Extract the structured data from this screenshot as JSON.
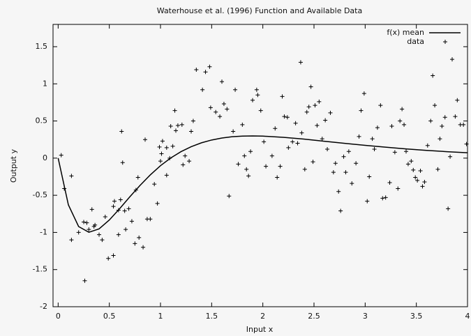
{
  "chart_data": {
    "type": "line",
    "title": "Waterhouse et al. (1996) Function and Available Data",
    "x_label": "Input x",
    "y_label": "Output y",
    "xlim": [
      -0.05,
      4
    ],
    "ylim": [
      -2,
      1.8
    ],
    "xticks": [
      0,
      0.5,
      1,
      1.5,
      2,
      2.5,
      3,
      3.5,
      4
    ],
    "yticks": [
      -2,
      -1.5,
      -1,
      -0.5,
      0,
      0.5,
      1,
      1.5
    ],
    "grid": false,
    "legend": "top-right",
    "series": [
      {
        "name": "f(x) mean",
        "type": "line",
        "color": "#000000",
        "x": [
          0,
          0.1,
          0.2,
          0.3,
          0.4,
          0.5,
          0.6,
          0.7,
          0.8,
          0.9,
          1.0,
          1.1,
          1.2,
          1.3,
          1.4,
          1.5,
          1.6,
          1.7,
          1.8,
          1.9,
          2.0,
          2.2,
          2.4,
          2.6,
          2.8,
          3.0,
          3.2,
          3.4,
          3.6,
          3.8,
          4.0
        ],
        "values": [
          0,
          -0.629,
          -0.921,
          -0.998,
          -0.952,
          -0.833,
          -0.682,
          -0.521,
          -0.367,
          -0.226,
          -0.102,
          0.002,
          0.087,
          0.154,
          0.206,
          0.244,
          0.271,
          0.288,
          0.296,
          0.299,
          0.296,
          0.28,
          0.256,
          0.227,
          0.199,
          0.172,
          0.147,
          0.124,
          0.104,
          0.087,
          0.072
        ]
      },
      {
        "name": "data",
        "type": "scatter",
        "color": "#000000",
        "x": [
          0.03,
          0.06,
          0.13,
          0.13,
          0.2,
          0.25,
          0.28,
          0.26,
          0.3,
          0.33,
          0.35,
          0.36,
          0.4,
          0.43,
          0.46,
          0.49,
          0.54,
          0.54,
          0.55,
          0.59,
          0.59,
          0.61,
          0.62,
          0.63,
          0.65,
          0.66,
          0.69,
          0.72,
          0.75,
          0.76,
          0.78,
          0.79,
          0.83,
          0.85,
          0.87,
          0.9,
          0.94,
          0.97,
          0.99,
          1.0,
          1.01,
          1.02,
          1.06,
          1.06,
          1.09,
          1.1,
          1.12,
          1.14,
          1.15,
          1.17,
          1.21,
          1.22,
          1.24,
          1.28,
          1.3,
          1.32,
          1.35,
          1.41,
          1.44,
          1.48,
          1.49,
          1.54,
          1.58,
          1.6,
          1.62,
          1.65,
          1.67,
          1.71,
          1.73,
          1.76,
          1.8,
          1.82,
          1.84,
          1.86,
          1.88,
          1.9,
          1.94,
          1.95,
          1.98,
          2.01,
          2.03,
          2.09,
          2.12,
          2.14,
          2.17,
          2.19,
          2.21,
          2.24,
          2.25,
          2.29,
          2.32,
          2.34,
          2.37,
          2.38,
          2.41,
          2.43,
          2.45,
          2.47,
          2.49,
          2.51,
          2.53,
          2.55,
          2.58,
          2.61,
          2.63,
          2.66,
          2.69,
          2.71,
          2.74,
          2.76,
          2.79,
          2.81,
          2.84,
          2.87,
          2.91,
          2.94,
          2.96,
          2.99,
          3.02,
          3.04,
          3.07,
          3.09,
          3.12,
          3.15,
          3.17,
          3.2,
          3.24,
          3.26,
          3.29,
          3.32,
          3.34,
          3.36,
          3.38,
          3.4,
          3.42,
          3.45,
          3.47,
          3.49,
          3.51,
          3.54,
          3.56,
          3.58,
          3.61,
          3.64,
          3.66,
          3.68,
          3.71,
          3.73,
          3.75,
          3.78,
          3.81,
          3.83,
          3.85,
          3.88,
          3.9,
          3.93,
          3.96,
          3.99
        ],
        "values": [
          0.04,
          -0.41,
          -0.24,
          -1.1,
          -1.0,
          -0.86,
          -0.87,
          -1.65,
          -0.96,
          -0.69,
          -0.92,
          -0.9,
          -1.03,
          -1.1,
          -0.79,
          -1.35,
          -1.31,
          -0.65,
          -0.58,
          -0.7,
          -1.03,
          -0.56,
          0.36,
          -0.06,
          -0.71,
          -0.96,
          -0.68,
          -0.85,
          -1.15,
          -0.43,
          -0.26,
          -1.07,
          -1.2,
          0.25,
          -0.82,
          -0.82,
          -0.35,
          -0.61,
          0.15,
          -0.04,
          0.06,
          0.23,
          -0.23,
          0.14,
          0.0,
          0.43,
          0.16,
          0.64,
          0.37,
          0.44,
          0.45,
          -0.09,
          0.03,
          -0.04,
          0.36,
          0.5,
          1.19,
          0.92,
          1.16,
          1.23,
          0.68,
          0.62,
          0.56,
          1.03,
          0.73,
          0.66,
          -0.51,
          0.36,
          0.92,
          -0.08,
          0.45,
          0.03,
          -0.15,
          -0.24,
          0.09,
          0.78,
          0.92,
          0.85,
          0.64,
          0.22,
          -0.11,
          0.03,
          0.4,
          -0.26,
          -0.11,
          0.83,
          0.56,
          0.55,
          0.14,
          0.22,
          0.47,
          0.2,
          1.29,
          0.34,
          -0.15,
          0.62,
          0.69,
          0.96,
          -0.05,
          0.71,
          0.44,
          0.76,
          0.26,
          0.51,
          0.12,
          0.61,
          -0.19,
          -0.07,
          -0.45,
          -0.71,
          0.02,
          -0.19,
          0.09,
          -0.34,
          -0.07,
          0.29,
          0.64,
          0.87,
          -0.58,
          -0.25,
          0.26,
          0.12,
          0.41,
          0.71,
          -0.54,
          -0.53,
          -0.33,
          0.43,
          0.08,
          -0.41,
          0.5,
          0.66,
          0.45,
          0.09,
          -0.08,
          -0.04,
          -0.16,
          -0.26,
          -0.3,
          -0.17,
          -0.38,
          -0.32,
          0.17,
          0.5,
          1.11,
          0.71,
          -0.15,
          0.26,
          0.43,
          0.55,
          -0.68,
          0.02,
          1.33,
          0.56,
          0.78,
          0.45,
          0.45,
          0.19
        ]
      }
    ]
  }
}
